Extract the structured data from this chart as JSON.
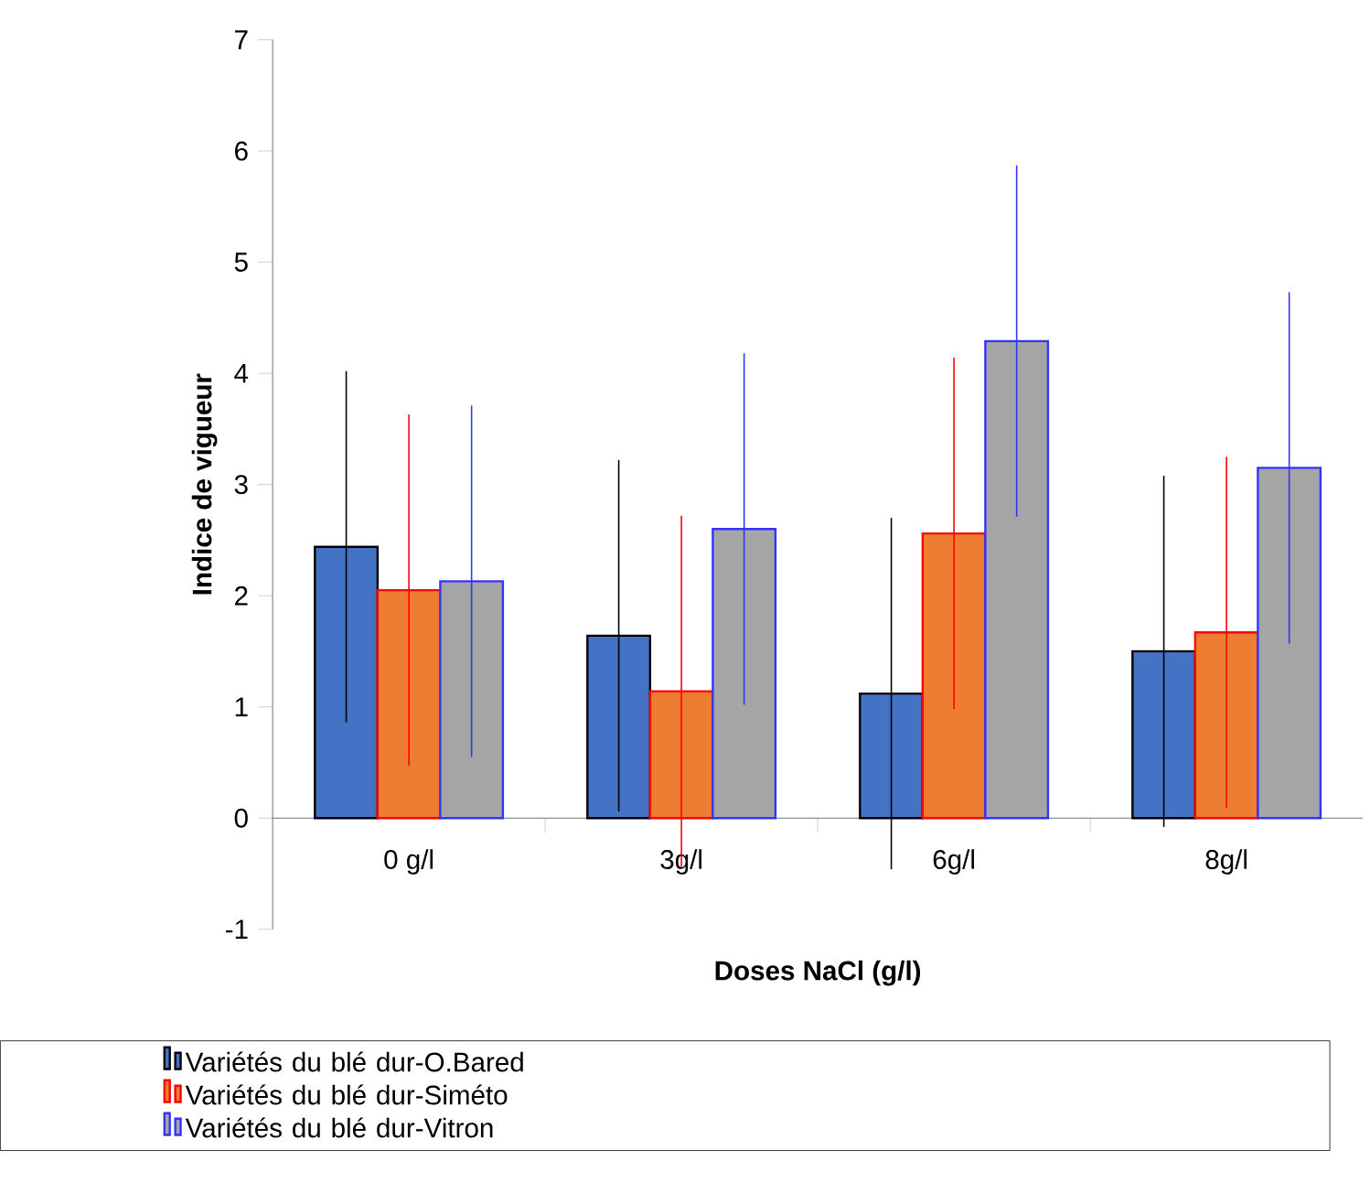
{
  "chart_data": {
    "type": "bar",
    "xlabel": "Doses NaCl (g/l)",
    "ylabel": "Indice de vigueur",
    "categories": [
      "0 g/l",
      "3g/l",
      "6g/l",
      "8g/l"
    ],
    "series": [
      {
        "name": "Variétés du blé dur-O.Bared",
        "color": "#4472c4",
        "values": [
          2.44,
          1.64,
          1.12,
          1.5
        ],
        "errors": [
          1.58,
          1.58,
          1.58,
          1.58
        ]
      },
      {
        "name": "Variétés du blé dur-Siméto",
        "color": "#ed7d31",
        "values": [
          2.05,
          1.14,
          2.56,
          1.67
        ],
        "errors": [
          1.58,
          1.58,
          1.58,
          1.58
        ]
      },
      {
        "name": "Variétés du blé dur-Vitron",
        "color": "#a5a5a5",
        "values": [
          2.13,
          2.6,
          4.29,
          3.15
        ],
        "errors": [
          1.58,
          1.58,
          1.58,
          1.58
        ]
      }
    ],
    "ylim": [
      -1,
      7
    ],
    "yticks": [
      -1,
      0,
      1,
      2,
      3,
      4,
      5,
      6,
      7
    ],
    "grid": false,
    "legend": "bottom"
  }
}
